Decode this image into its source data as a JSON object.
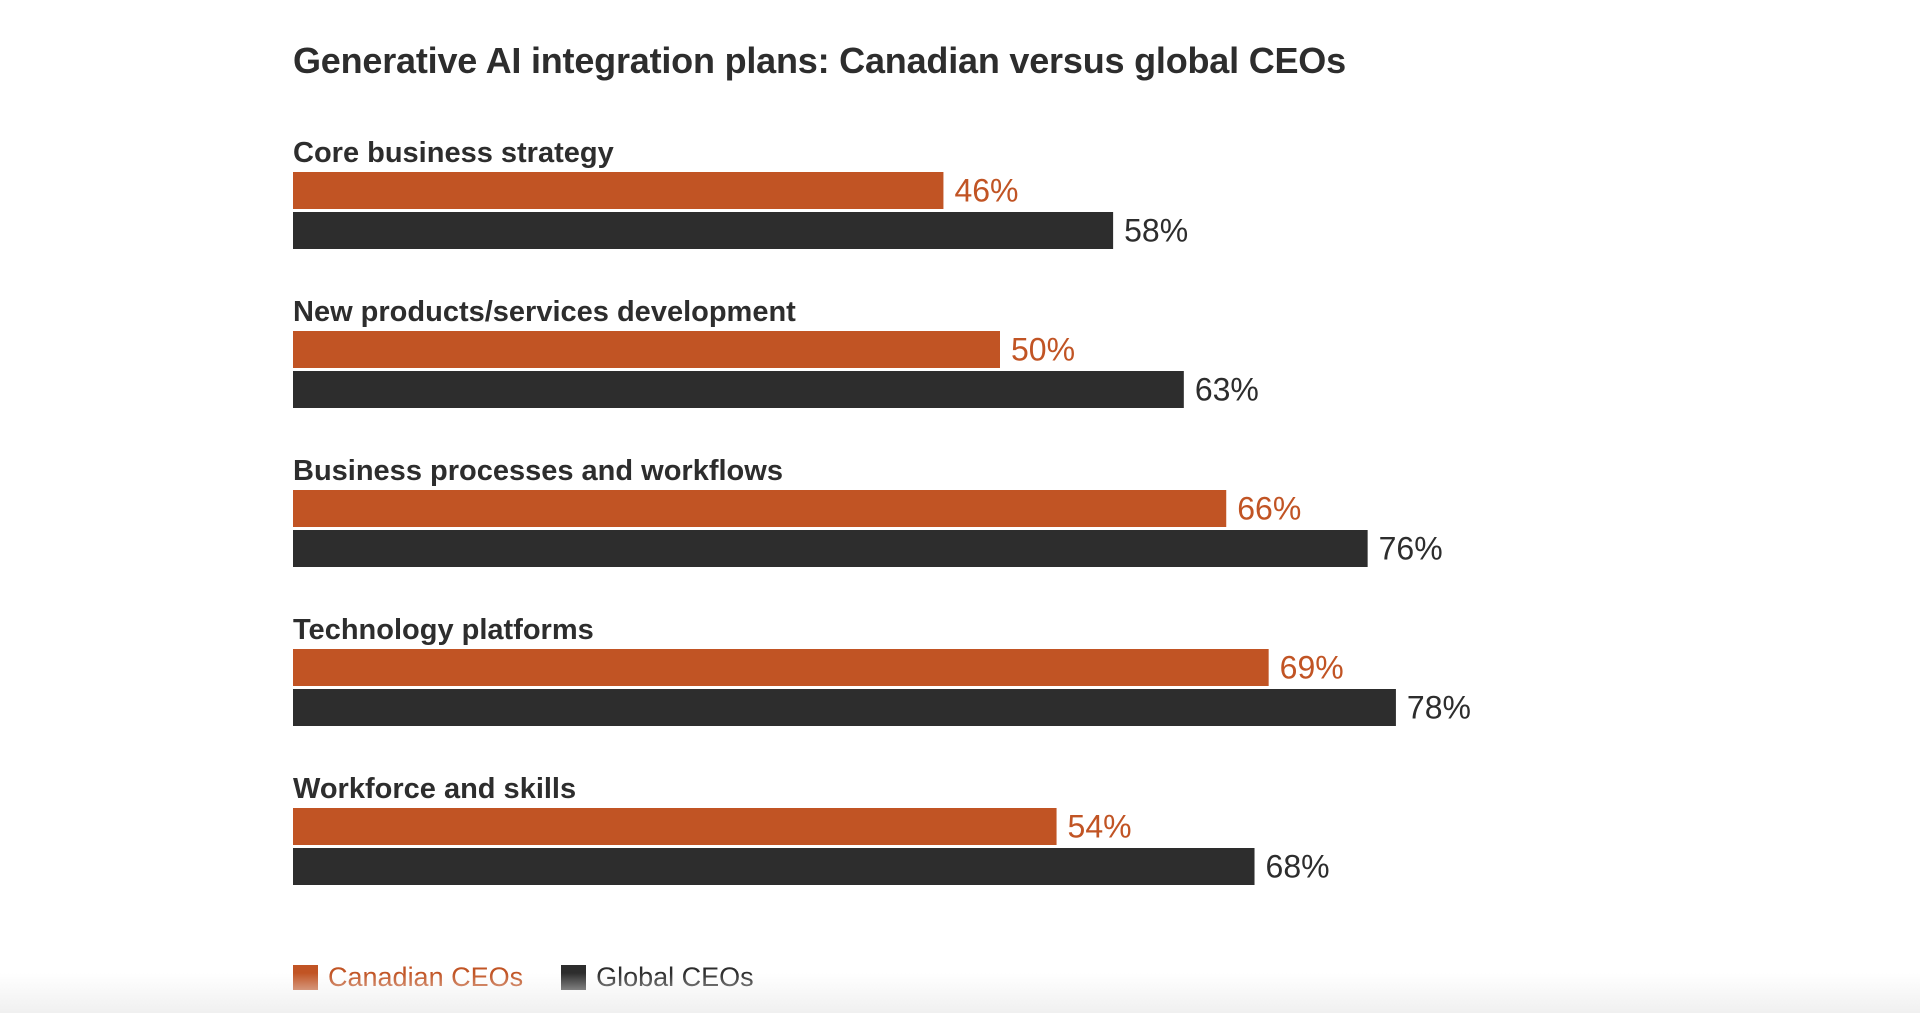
{
  "chart_data": {
    "type": "bar",
    "orientation": "horizontal",
    "title": "Generative AI integration plans: Canadian versus global CEOs",
    "categories": [
      "Core business strategy",
      "New products/services development",
      "Business processes and workflows",
      "Technology platforms",
      "Workforce and skills"
    ],
    "series": [
      {
        "name": "Canadian CEOs",
        "color": "#c15424",
        "values": [
          46,
          50,
          66,
          69,
          54
        ],
        "labels": [
          "46%",
          "50%",
          "66%",
          "69%",
          "54%"
        ]
      },
      {
        "name": "Global CEOs",
        "color": "#2d2d2d",
        "values": [
          58,
          63,
          76,
          78,
          68
        ],
        "labels": [
          "58%",
          "63%",
          "76%",
          "78%",
          "68%"
        ]
      }
    ],
    "value_unit": "%",
    "xlim": [
      0,
      100
    ],
    "grid": false,
    "legend_position": "bottom-left"
  }
}
